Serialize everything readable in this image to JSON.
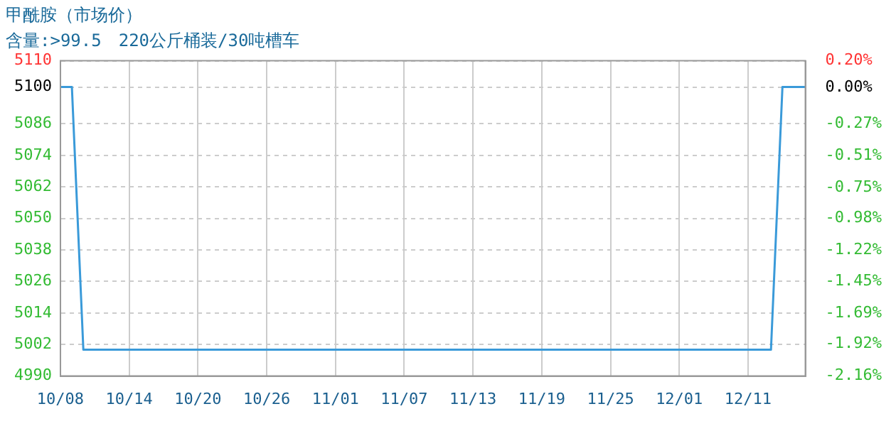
{
  "chart_data": {
    "type": "line",
    "title": "甲酰胺（市场价）",
    "subtitle": "含量:>99.5　220公斤桶装/30吨槽车",
    "categories": [
      "10/08",
      null,
      null,
      null,
      null,
      null,
      "10/14",
      null,
      null,
      null,
      null,
      null,
      "10/20",
      null,
      null,
      null,
      null,
      null,
      "10/26",
      null,
      null,
      null,
      null,
      null,
      "11/01",
      null,
      null,
      null,
      null,
      null,
      "11/07",
      null,
      null,
      null,
      null,
      null,
      "11/13",
      null,
      null,
      null,
      null,
      null,
      "11/19",
      null,
      null,
      null,
      null,
      null,
      "11/25",
      null,
      null,
      null,
      null,
      null,
      "12/01",
      null,
      null,
      null,
      null,
      null,
      "12/11",
      null,
      null,
      null,
      null,
      null
    ],
    "series": [
      {
        "color": "#3a9ad9",
        "values": [
          5100,
          5100,
          5000,
          5000,
          5000,
          5000,
          5000,
          5000,
          5000,
          5000,
          5000,
          5000,
          5000,
          5000,
          5000,
          5000,
          5000,
          5000,
          5000,
          5000,
          5000,
          5000,
          5000,
          5000,
          5000,
          5000,
          5000,
          5000,
          5000,
          5000,
          5000,
          5000,
          5000,
          5000,
          5000,
          5000,
          5000,
          5000,
          5000,
          5000,
          5000,
          5000,
          5000,
          5000,
          5000,
          5000,
          5000,
          5000,
          5000,
          5000,
          5000,
          5000,
          5000,
          5000,
          5000,
          5000,
          5000,
          5000,
          5000,
          5000,
          5000,
          5000,
          5000,
          5100,
          5100,
          5100
        ]
      }
    ],
    "ylim": [
      4990,
      5110
    ],
    "yticks": [
      4990,
      5002,
      5014,
      5026,
      5038,
      5050,
      5062,
      5074,
      5086,
      5100,
      5110
    ],
    "y2lim": [
      -2.16,
      0.2
    ],
    "y2ticks": [
      {
        "value": -2.16,
        "label": "-2.16%"
      },
      {
        "value": -1.92,
        "label": "-1.92%"
      },
      {
        "value": -1.69,
        "label": "-1.69%"
      },
      {
        "value": -1.45,
        "label": "-1.45%"
      },
      {
        "value": -1.22,
        "label": "-1.22%"
      },
      {
        "value": -0.98,
        "label": "-0.98%"
      },
      {
        "value": -0.75,
        "label": "-0.75%"
      },
      {
        "value": -0.51,
        "label": "-0.51%"
      },
      {
        "value": -0.27,
        "label": "-0.27%"
      },
      {
        "value": 0,
        "label": "0.00%"
      },
      {
        "value": 0.2,
        "label": "0.20%"
      }
    ],
    "grid": true,
    "line_style": "solid",
    "marker": "none"
  }
}
